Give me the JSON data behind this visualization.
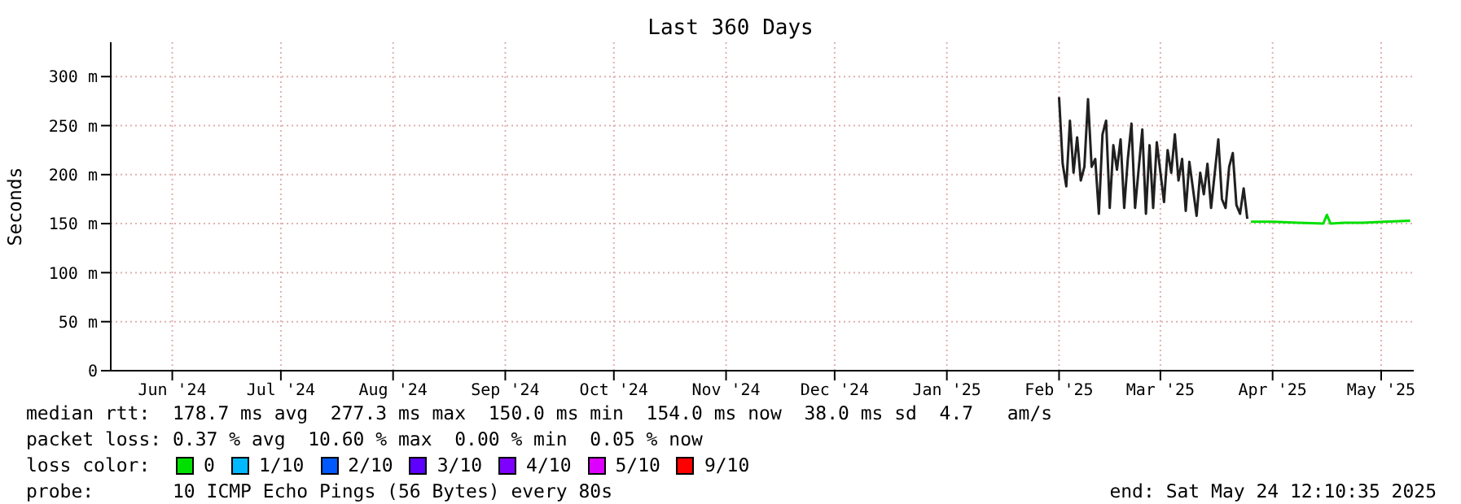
{
  "chart_data": {
    "type": "line",
    "title": "Last 360 Days",
    "ylabel": "Seconds",
    "xlim": [
      "2024-05-29",
      "2025-05-24"
    ],
    "xticks": [
      {
        "value": "2024-06-15",
        "label": "Jun '24"
      },
      {
        "value": "2024-07-15",
        "label": "Jul '24"
      },
      {
        "value": "2024-08-15",
        "label": "Aug '24"
      },
      {
        "value": "2024-09-15",
        "label": "Sep '24"
      },
      {
        "value": "2024-10-15",
        "label": "Oct '24"
      },
      {
        "value": "2024-11-15",
        "label": "Nov '24"
      },
      {
        "value": "2024-12-15",
        "label": "Dec '24"
      },
      {
        "value": "2025-01-15",
        "label": "Jan '25"
      },
      {
        "value": "2025-02-15",
        "label": "Feb '25"
      },
      {
        "value": "2025-03-15",
        "label": "Mar '25"
      },
      {
        "value": "2025-04-15",
        "label": "Apr '25"
      },
      {
        "value": "2025-05-15",
        "label": "May '25"
      }
    ],
    "ylim": [
      0,
      335
    ],
    "yticks": [
      0,
      {
        "value": 50,
        "label": "50 m"
      },
      {
        "value": 100,
        "label": "100 m"
      },
      {
        "value": 150,
        "label": "150 m"
      },
      {
        "value": 200,
        "label": "200 m"
      },
      {
        "value": 250,
        "label": "250 m"
      },
      {
        "value": 300,
        "label": "300 m"
      }
    ],
    "grid": true,
    "legend": "bottom",
    "legend_title": "loss color:",
    "marker": "none",
    "line_style": "solid",
    "series": [
      {
        "color": "#202020",
        "x": [
          "2025-02-15",
          "2025-02-16",
          "2025-02-17",
          "2025-02-18",
          "2025-02-19",
          "2025-02-20",
          "2025-02-21",
          "2025-02-22",
          "2025-02-23",
          "2025-02-24",
          "2025-02-25",
          "2025-02-26",
          "2025-02-27",
          "2025-02-28",
          "2025-03-01",
          "2025-03-02",
          "2025-03-03",
          "2025-03-04",
          "2025-03-05",
          "2025-03-06",
          "2025-03-07",
          "2025-03-08",
          "2025-03-10",
          "2025-03-11",
          "2025-03-12",
          "2025-03-13",
          "2025-03-14",
          "2025-03-16",
          "2025-03-17",
          "2025-03-18",
          "2025-03-19",
          "2025-03-20",
          "2025-03-21",
          "2025-03-22",
          "2025-03-23",
          "2025-03-25",
          "2025-03-26",
          "2025-03-27",
          "2025-03-28",
          "2025-03-29",
          "2025-03-31",
          "2025-04-01",
          "2025-04-02",
          "2025-04-03",
          "2025-04-04",
          "2025-04-05",
          "2025-04-06",
          "2025-04-07",
          "2025-04-08"
        ],
        "values": [
          279,
          211,
          188,
          255,
          202,
          238,
          194,
          208,
          277,
          208,
          216,
          160,
          241,
          255,
          166,
          230,
          205,
          236,
          166,
          216,
          252,
          166,
          246,
          160,
          230,
          166,
          233,
          172,
          225,
          202,
          241,
          194,
          216,
          163,
          213,
          158,
          202,
          180,
          211,
          166,
          236,
          175,
          166,
          208,
          222,
          169,
          160,
          186,
          155
        ]
      },
      {
        "name": "0",
        "color": "#00e000",
        "x": [
          "2025-04-09",
          "2025-04-15",
          "2025-04-22",
          "2025-04-29",
          "2025-04-30",
          "2025-05-01",
          "2025-05-05",
          "2025-05-10",
          "2025-05-16",
          "2025-05-23"
        ],
        "values": [
          152,
          152,
          151,
          150,
          159,
          150,
          151,
          151,
          152,
          153
        ]
      },
      {
        "name": "1/10",
        "color": "#00b8ff"
      },
      {
        "name": "2/10",
        "color": "#0059ff"
      },
      {
        "name": "3/10",
        "color": "#5e00ff"
      },
      {
        "name": "4/10",
        "color": "#7e00ff"
      },
      {
        "name": "5/10",
        "color": "#dd00ff"
      },
      {
        "name": "9/10",
        "color": "#ff0000"
      }
    ],
    "annotations": [
      "median rtt:  178.7 ms avg  277.3 ms max  150.0 ms min  154.0 ms now  38.0 ms sd  4.7   am/s",
      "packet loss: 0.37 % avg  10.60 % max  0.00 % min  0.05 % now",
      "probe:       10 ICMP Echo Pings (56 Bytes) every 80s",
      "end: Sat May 24 12:10:35 2025"
    ]
  }
}
